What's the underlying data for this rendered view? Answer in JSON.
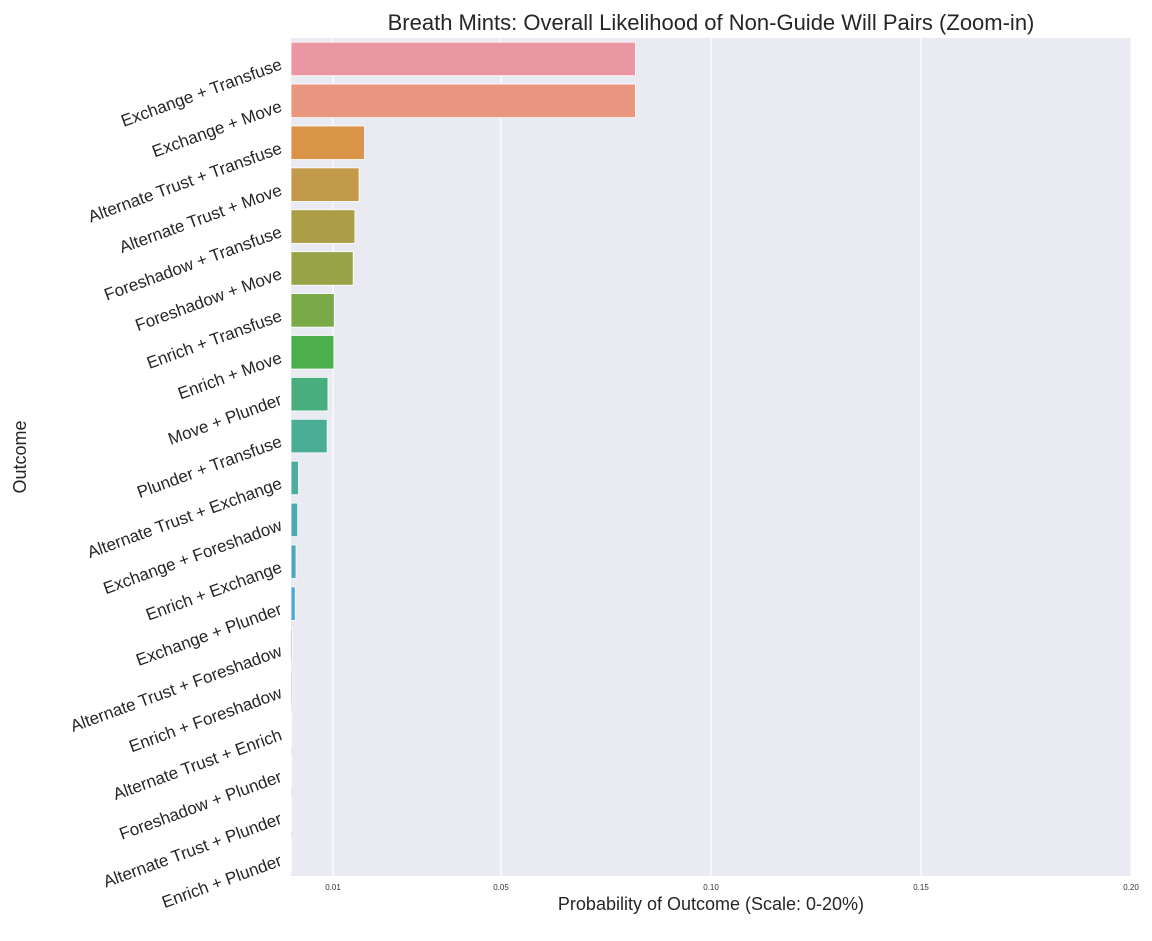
{
  "chart_data": {
    "type": "bar",
    "orientation": "horizontal",
    "title": "Breath Mints: Overall Likelihood of Non-Guide Will Pairs (Zoom-in)",
    "xlabel": "Probability of Outcome (Scale: 0-20%)",
    "ylabel": "Outcome",
    "xlim": [
      0,
      0.2
    ],
    "x_ticks": [
      {
        "value": 0.01,
        "label": "0.01"
      },
      {
        "value": 0.05,
        "label": "0.05"
      },
      {
        "value": 0.1,
        "label": "0.10"
      },
      {
        "value": 0.15,
        "label": "0.15"
      },
      {
        "value": 0.2,
        "label": "0.20"
      }
    ],
    "grid": "vertical",
    "background": "#eaeaf2",
    "categories": [
      "Exchange + Transfuse",
      "Exchange + Move",
      "Alternate Trust + Transfuse",
      "Alternate Trust + Move",
      "Foreshadow + Transfuse",
      "Foreshadow + Move",
      "Enrich + Transfuse",
      "Enrich + Move",
      "Move + Plunder",
      "Plunder + Transfuse",
      "Alternate Trust + Exchange",
      "Exchange + Foreshadow",
      "Enrich + Exchange",
      "Exchange + Plunder",
      "Alternate Trust + Foreshadow",
      "Enrich + Foreshadow",
      "Alternate Trust + Enrich",
      "Foreshadow + Plunder",
      "Alternate Trust + Plunder",
      "Enrich + Plunder"
    ],
    "values": [
      0.082,
      0.082,
      0.0175,
      0.0162,
      0.0152,
      0.0148,
      0.0103,
      0.0102,
      0.0088,
      0.0086,
      0.0018,
      0.0016,
      0.0012,
      0.001,
      0.0003,
      0.0003,
      0.0002,
      0.0002,
      0.0002,
      0.0002
    ],
    "colors": [
      "#ea96a3",
      "#e8967f",
      "#d99447",
      "#c3994a",
      "#ac9e46",
      "#98a246",
      "#7aa947",
      "#4caf4c",
      "#48ae7e",
      "#4aae97",
      "#4bac9f",
      "#4caaad",
      "#4fa8bc",
      "#4ea7d2",
      "#76a0e6",
      "#9e94e9",
      "#c48aea",
      "#e37ae6",
      "#ea85ce",
      "#eb8cb7"
    ]
  }
}
